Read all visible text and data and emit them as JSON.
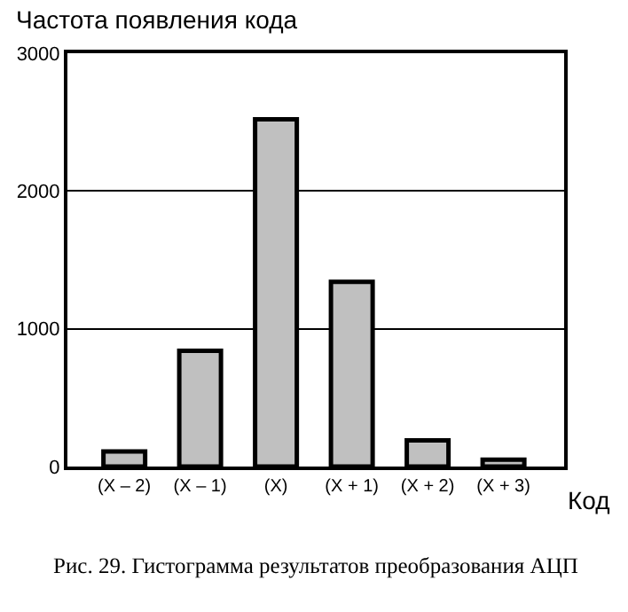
{
  "chart_data": {
    "type": "bar",
    "ylabel": "Частота появления кода",
    "xlabel": "Код",
    "categories": [
      "(X – 2)",
      "(X – 1)",
      "(X)",
      "(X + 1)",
      "(X + 2)",
      "(X + 3)"
    ],
    "values": [
      110,
      840,
      2520,
      1340,
      190,
      50
    ],
    "color": "#c0c0c0",
    "ylim": [
      0,
      3000
    ],
    "yticks": [
      0,
      1000,
      2000,
      3000
    ],
    "grid": "y",
    "annotations": [
      "Рис. 29. Гистограмма результатов преобразования АЦП"
    ]
  }
}
